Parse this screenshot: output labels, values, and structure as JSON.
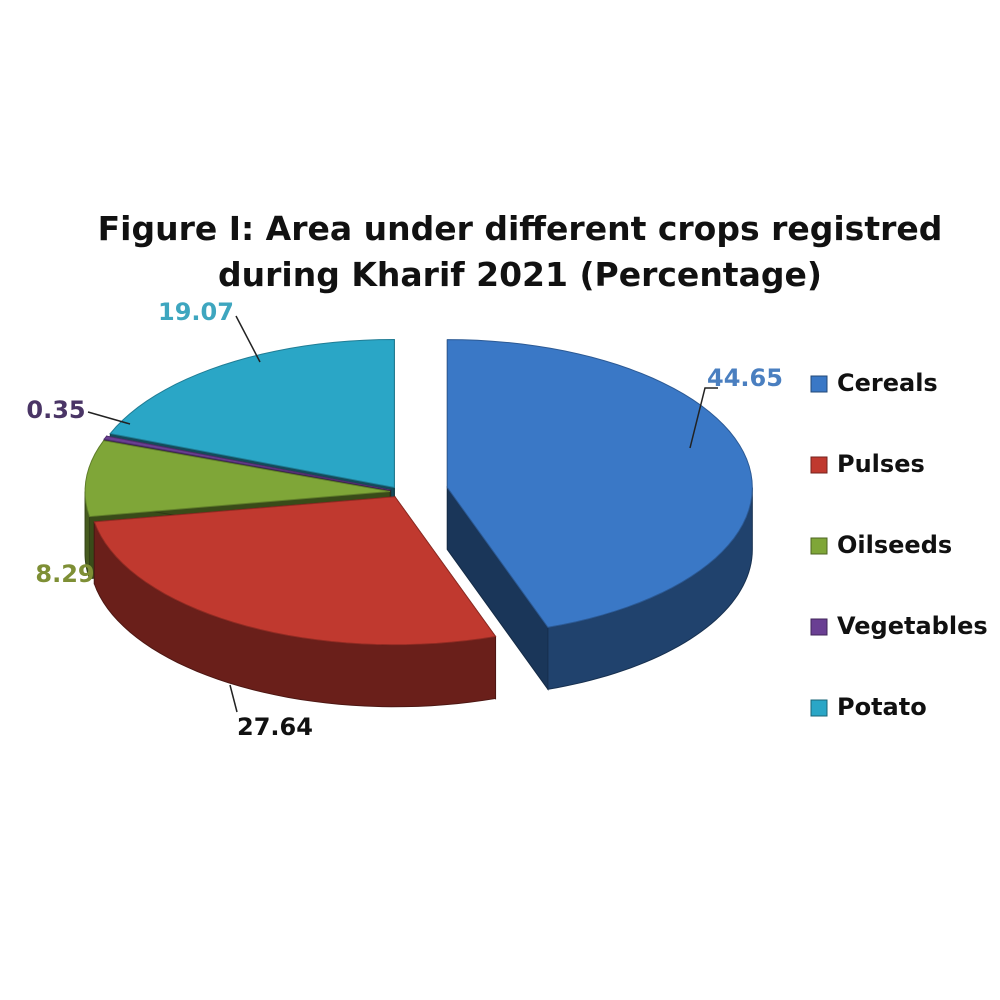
{
  "chart_data": {
    "type": "pie",
    "title_lines": [
      "Figure I: Area under different crops registred",
      "during Kharif 2021 (Percentage)"
    ],
    "categories": [
      "Cereals",
      "Pulses",
      "Oilseeds",
      "Vegetables",
      "Potato"
    ],
    "values": [
      44.65,
      27.64,
      8.29,
      0.35,
      19.07
    ],
    "value_labels": [
      "44.65",
      "27.64",
      "8.29",
      "0.35",
      "19.07"
    ],
    "colors": [
      "#3a78c6",
      "#c0392f",
      "#7fa638",
      "#6a3f93",
      "#2aa6c6"
    ],
    "label_colors": [
      "#4a7fc0",
      "#111111",
      "#7e8f35",
      "#4a3566",
      "#3ea6bf"
    ],
    "legend_position": "right",
    "style": "3d-exploded"
  }
}
